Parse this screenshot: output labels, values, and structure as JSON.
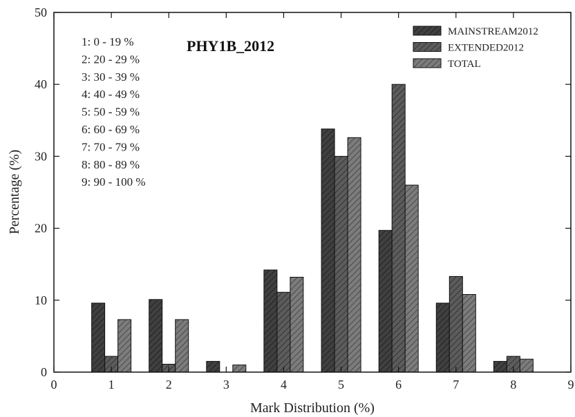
{
  "chart_data": {
    "type": "bar",
    "title": "PHY1B_2012",
    "xlabel": "Mark Distribution (%)",
    "ylabel": "Percentage (%)",
    "xlim": [
      0,
      9
    ],
    "ylim": [
      0,
      50
    ],
    "x_ticks": [
      "0",
      "1",
      "2",
      "3",
      "4",
      "5",
      "6",
      "7",
      "8",
      "9"
    ],
    "y_ticks": [
      "0",
      "10",
      "20",
      "30",
      "40",
      "50"
    ],
    "categories": [
      1,
      2,
      3,
      4,
      5,
      6,
      7,
      8
    ],
    "series": [
      {
        "name": "MAINSTREAM2012",
        "color": "#404040",
        "values": [
          9.6,
          10.1,
          1.5,
          14.2,
          33.8,
          19.7,
          9.6,
          1.5
        ]
      },
      {
        "name": "EXTENDED2012",
        "color": "#5c5c5c",
        "values": [
          2.2,
          1.1,
          0.0,
          11.1,
          30.0,
          40.0,
          13.3,
          2.2
        ]
      },
      {
        "name": "TOTAL",
        "color": "#7c7c7c",
        "values": [
          7.3,
          7.3,
          1.0,
          13.2,
          32.6,
          26.0,
          10.8,
          1.8
        ]
      }
    ],
    "legend_position": "top-right",
    "grid": false,
    "annotations": [
      "1: 0 - 19 %",
      "2: 20 - 29 %",
      "3: 30 - 39 %",
      "4: 40 - 49 %",
      "5: 50 - 59 %",
      "6: 60 - 69 %",
      "7: 70 - 79 %",
      "8: 80 - 89 %",
      "9: 90 - 100 %"
    ]
  }
}
